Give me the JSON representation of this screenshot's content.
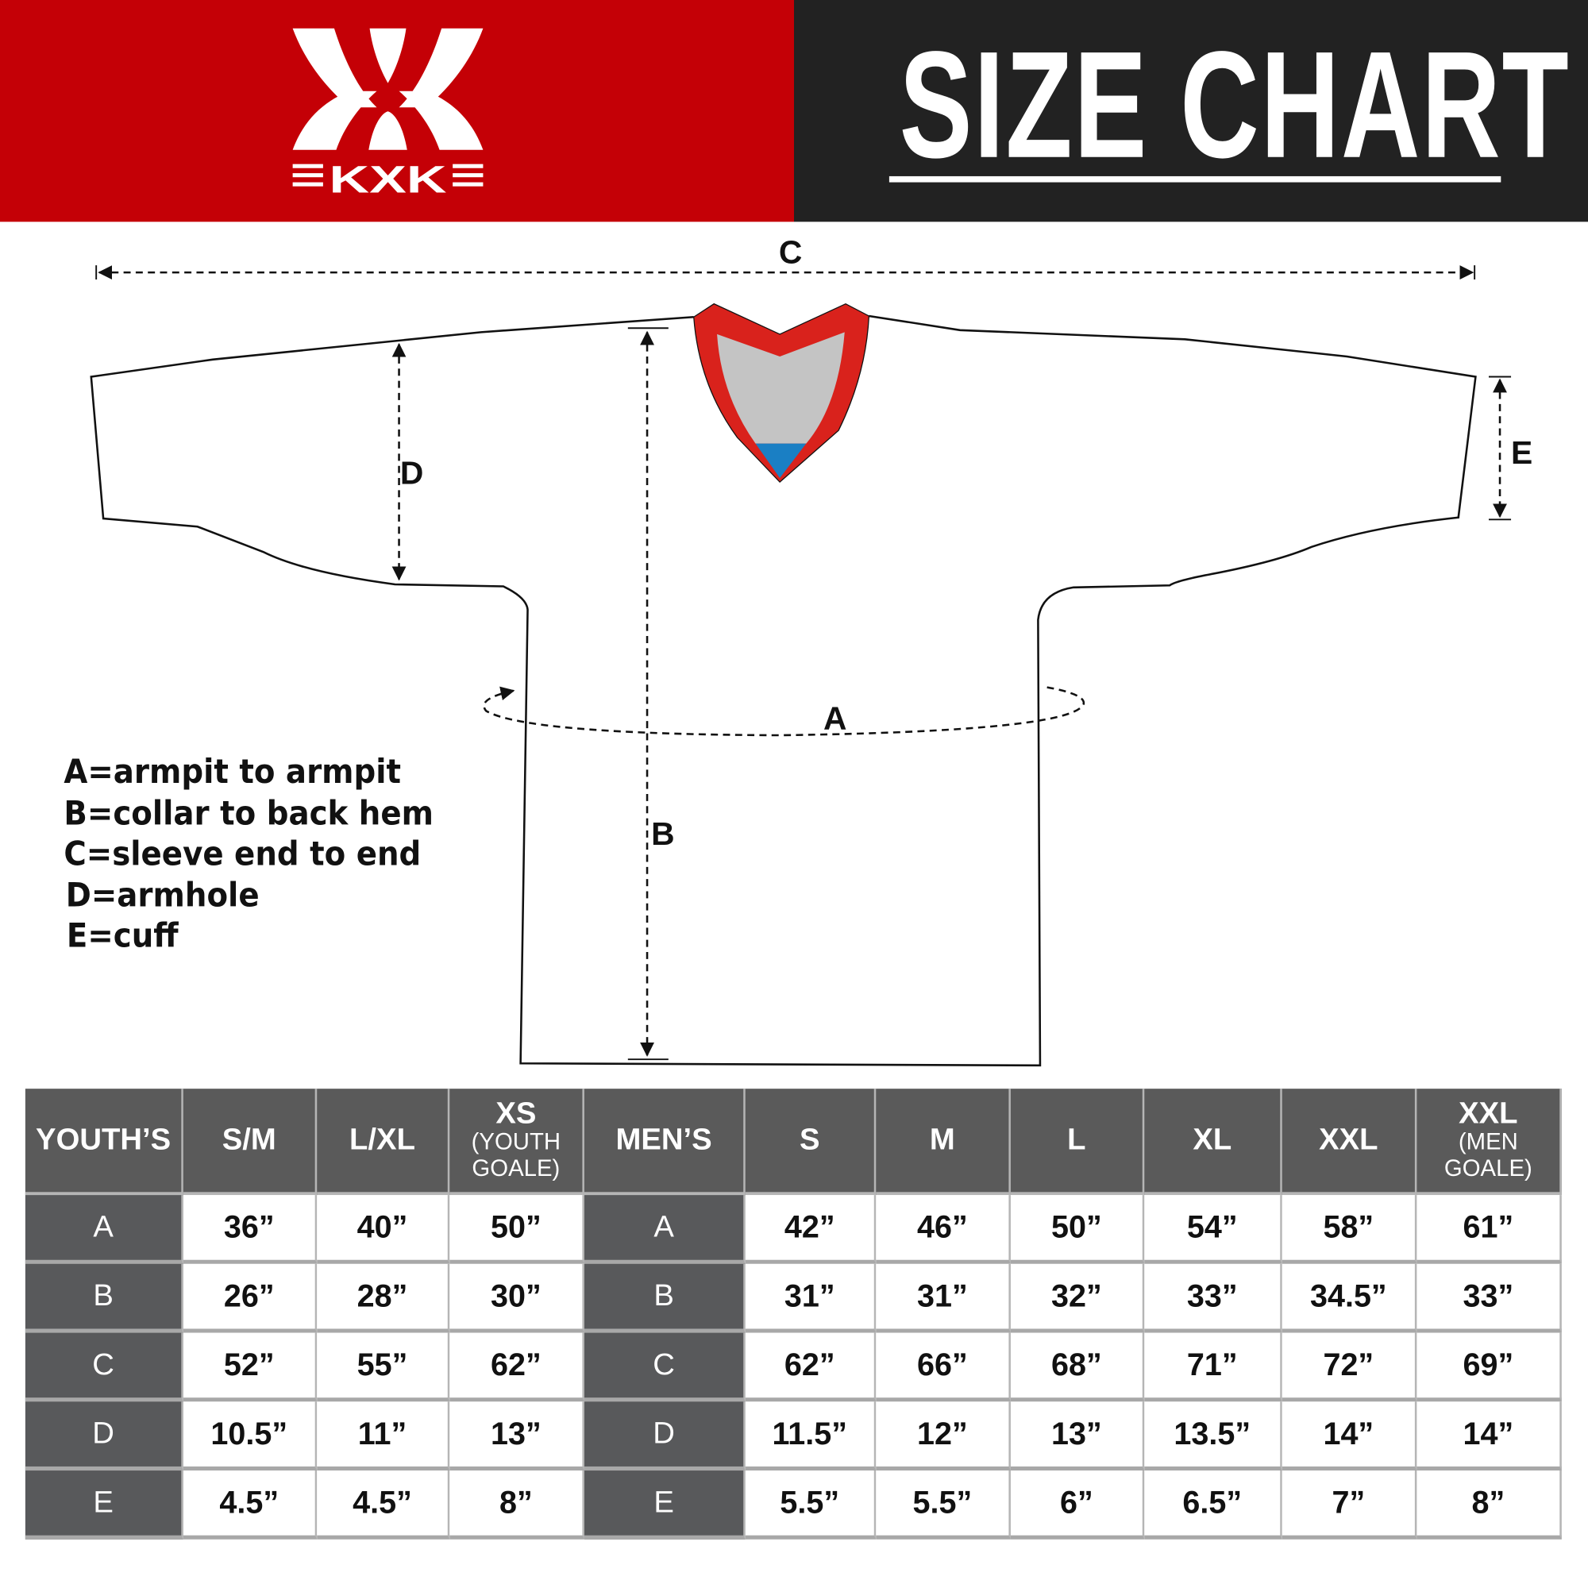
{
  "brand": {
    "logo_text": "KXK",
    "accent_red": "#c40006",
    "dark": "#222222"
  },
  "header": {
    "title": "SIZE CHART"
  },
  "diagram": {
    "labels": {
      "a": "A",
      "b": "B",
      "c": "C",
      "d": "D",
      "e": "E"
    },
    "collar_colors": {
      "trim": "#d9221c",
      "inner": "#c4c4c4",
      "tip": "#1a7fc4"
    }
  },
  "legend": [
    "A=armpit to armpit",
    "B=collar to back hem",
    "C=sleeve end to end",
    "D=armhole",
    "E=cuff"
  ],
  "table": {
    "headers": [
      {
        "main": "YOUTH’S",
        "sub": ""
      },
      {
        "main": "S/M",
        "sub": ""
      },
      {
        "main": "L/XL",
        "sub": ""
      },
      {
        "main": "XS",
        "sub": "(YOUTH GOALE)"
      },
      {
        "main": "MEN’S",
        "sub": ""
      },
      {
        "main": "S",
        "sub": ""
      },
      {
        "main": "M",
        "sub": ""
      },
      {
        "main": "L",
        "sub": ""
      },
      {
        "main": "XL",
        "sub": ""
      },
      {
        "main": "XXL",
        "sub": ""
      },
      {
        "main": "XXL",
        "sub": "(MEN GOALE)"
      }
    ],
    "rows": [
      [
        "A",
        "36”",
        "40”",
        "50”",
        "A",
        "42”",
        "46”",
        "50”",
        "54”",
        "58”",
        "61”"
      ],
      [
        "B",
        "26”",
        "28”",
        "30”",
        "B",
        "31”",
        "31”",
        "32”",
        "33”",
        "34.5”",
        "33”"
      ],
      [
        "C",
        "52”",
        "55”",
        "62”",
        "C",
        "62”",
        "66”",
        "68”",
        "71”",
        "72”",
        "69”"
      ],
      [
        "D",
        "10.5”",
        "11”",
        "13”",
        "D",
        "11.5”",
        "12”",
        "13”",
        "13.5”",
        "14”",
        "14”"
      ],
      [
        "E",
        "4.5”",
        "4.5”",
        "8”",
        "E",
        "5.5”",
        "5.5”",
        "6”",
        "6.5”",
        "7”",
        "8”"
      ]
    ]
  }
}
